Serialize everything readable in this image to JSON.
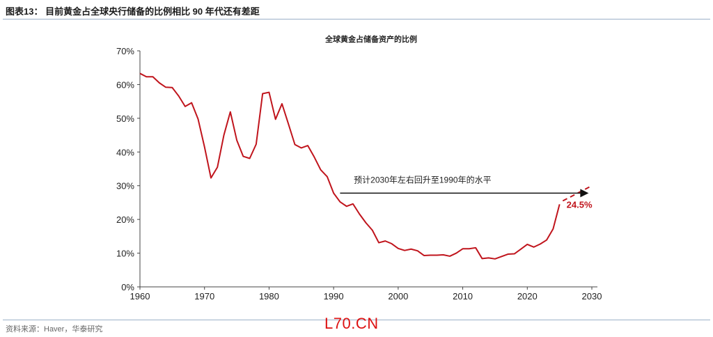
{
  "header": {
    "title": "图表13：  目前黄金占全球央行储备的比例相比 90 年代还有差距"
  },
  "footer": {
    "source": "资料来源：Haver，华泰研究"
  },
  "watermark": "L70.CN",
  "chart_data": {
    "type": "line",
    "title": "全球黄金占储备资产的比例",
    "xlabel": "",
    "ylabel": "",
    "xlim": [
      1960,
      2030
    ],
    "ylim": [
      0,
      70
    ],
    "xticks": [
      "1960",
      "1970",
      "1980",
      "1990",
      "2000",
      "2010",
      "2020",
      "2030"
    ],
    "yticks": [
      "0%",
      "10%",
      "20%",
      "30%",
      "40%",
      "50%",
      "60%",
      "70%"
    ],
    "grid": false,
    "color": "#c0141c",
    "x": [
      1960,
      1961,
      1962,
      1963,
      1964,
      1965,
      1966,
      1967,
      1968,
      1969,
      1970,
      1971,
      1972,
      1973,
      1974,
      1975,
      1976,
      1977,
      1978,
      1979,
      1980,
      1981,
      1982,
      1983,
      1984,
      1985,
      1986,
      1987,
      1988,
      1989,
      1990,
      1991,
      1992,
      1993,
      1994,
      1995,
      1996,
      1997,
      1998,
      1999,
      2000,
      2001,
      2002,
      2003,
      2004,
      2005,
      2006,
      2007,
      2008,
      2009,
      2010,
      2011,
      2012,
      2013,
      2014,
      2015,
      2016,
      2017,
      2018,
      2019,
      2020,
      2021,
      2022,
      2023,
      2024,
      2025
    ],
    "y": [
      63.3,
      62.3,
      62.3,
      60.5,
      59.2,
      59.1,
      56.6,
      53.5,
      54.6,
      49.8,
      41.5,
      32.3,
      35.5,
      45,
      51.9,
      43.5,
      38.7,
      38.1,
      42.3,
      57.3,
      57.7,
      49.7,
      54.3,
      48.3,
      42.2,
      41.2,
      41.9,
      38.5,
      34.7,
      32.7,
      27.8,
      25.2,
      23.9,
      24.6,
      21.6,
      19,
      16.8,
      13.1,
      13.6,
      12.8,
      11.4,
      10.8,
      11.2,
      10.7,
      9.3,
      9.4,
      9.4,
      9.5,
      9.1,
      10,
      11.3,
      11.3,
      11.6,
      8.4,
      8.6,
      8.3,
      9,
      9.7,
      9.8,
      11.2,
      12.6,
      11.8,
      12.7,
      13.9,
      17.2,
      24.5
    ],
    "projection": {
      "x": [
        2025.5,
        2030
      ],
      "y": [
        25.5,
        30
      ]
    },
    "annotations": [
      {
        "text": "预计2030年左右回升至1990年的水平",
        "arrow_from": [
          1991,
          27.8
        ],
        "arrow_to": [
          2029.5,
          27.8
        ]
      },
      {
        "text": "24.5%",
        "x": 2025,
        "y": 24.5
      }
    ]
  }
}
